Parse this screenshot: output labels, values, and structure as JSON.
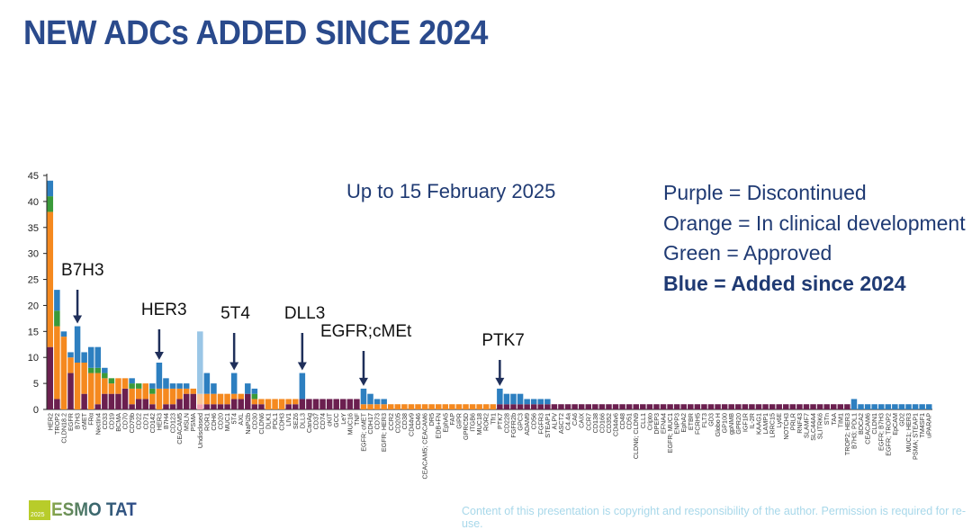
{
  "title": "NEW ADCs ADDED SINCE 2024",
  "subtitle": "Up to 15 February 2025",
  "legend": [
    {
      "label": "Purple = Discontinued",
      "bold": false
    },
    {
      "label": "Orange = In clinical development",
      "bold": false
    },
    {
      "label": "Green = Approved",
      "bold": false
    },
    {
      "label": "Blue = Added since 2024",
      "bold": true
    }
  ],
  "footer": {
    "logo_year": "2025",
    "logo_text": "ESMO TAT",
    "copyright": "Content of this presentation is copyright and responsibility of the author. Permission is required for re-use."
  },
  "chart_data": {
    "type": "bar",
    "stacked": true,
    "title": "NEW ADCs ADDED SINCE 2024",
    "xlabel": "",
    "ylabel": "",
    "ylim": [
      0,
      45
    ],
    "yticks": [
      0,
      5,
      10,
      15,
      20,
      25,
      30,
      35,
      40,
      45
    ],
    "grid": false,
    "legend_position": "top-right",
    "colors": {
      "Discontinued": "#6b1f4f",
      "In clinical development": "#f5891f",
      "Approved": "#3a9a3a",
      "Added since 2024": "#2d7fc0",
      "undisclosed_discontinued": "#f2a0b0",
      "undisclosed_clinical": "#f8c79a",
      "undisclosed_added": "#9ac6e6"
    },
    "categories": [
      "HER2",
      "TROP2",
      "CLDN18.2",
      "EGFR",
      "B7H3",
      "cMET",
      "FRα",
      "Nectin4",
      "CD33",
      "CD19",
      "BCMA",
      "CD70",
      "CD79b",
      "CD22",
      "CD71",
      "CD142",
      "HER3",
      "B7H4",
      "CD123",
      "CEACAM5",
      "MSLN",
      "PSMA",
      "Undisclosed",
      "ROR1",
      "CDH6",
      "CD20",
      "MUC1",
      "5T4",
      "AXL",
      "NaPi2b",
      "CD30",
      "CLDN6",
      "DLK1",
      "PDL1",
      "CDH3",
      "LIV1",
      "SEZ6",
      "DLL3",
      "CanAg",
      "CD37",
      "CD74",
      "cKIT",
      "GCC",
      "LeY",
      "MUC16",
      "TNF",
      "EGFR; cMET",
      "CDH17",
      "CD73",
      "EGFR; HER3",
      "CCR2",
      "CD205",
      "CD38",
      "CD44v9",
      "CD46",
      "CEACAM5; CEACAM6",
      "DR5",
      "EDB+FN",
      "EphA5",
      "FAP",
      "GIPR",
      "GPRC5D",
      "ITGB6",
      "MUC18",
      "ROR2",
      "Tfr1",
      "PTK7",
      "CD228",
      "FGFR2b",
      "GPC3",
      "ADAM9",
      "CD56",
      "FGFR3",
      "STEAP1",
      "ALPV",
      "ASCT2",
      "C4.4a",
      "CA6",
      "CAIX",
      "CCR7",
      "CD138",
      "CD166",
      "CD352",
      "CD44v6",
      "CD48",
      "CD51",
      "CLDN6; CLDN9",
      "CLL1",
      "Cripto",
      "DPEP3",
      "EFNA4",
      "EGFR; MUC1",
      "ENPP3",
      "EphA2",
      "ETBR",
      "FCRH5",
      "FLT3",
      "GD3",
      "Globo H",
      "GP100",
      "gpNMB",
      "GPR20",
      "IGF1R",
      "IL-2R",
      "KAAG1",
      "LAMP1",
      "LRRC15",
      "Ly6E",
      "NOTCH3",
      "PRLR",
      "RNF43",
      "SLAMF7",
      "SLC44A4",
      "SLITRK6",
      "STn",
      "TAA",
      "TIM1",
      "TROP2; HER3",
      "B7H3; PDL1",
      "BDCA2",
      "CEACAM6",
      "CLDN1",
      "EGFR; B7H3",
      "EGFR; TROP2",
      "EpCAM",
      "GD2",
      "MUC1; HER3",
      "PSMA; STEAP1",
      "TM4SF1",
      "uPARAP"
    ],
    "series": [
      {
        "name": "Discontinued",
        "values": [
          12,
          2,
          0,
          7,
          0,
          3,
          0,
          1,
          3,
          3,
          3,
          4,
          1,
          2,
          2,
          1,
          0,
          1,
          1,
          2,
          3,
          3,
          1,
          1,
          1,
          1,
          1,
          2,
          2,
          3,
          1,
          1,
          0,
          0,
          0,
          1,
          1,
          2,
          2,
          2,
          2,
          2,
          2,
          2,
          2,
          2,
          0,
          0,
          0,
          0,
          0,
          0,
          0,
          0,
          0,
          0,
          0,
          0,
          0,
          0,
          0,
          0,
          0,
          0,
          0,
          0,
          1,
          1,
          1,
          1,
          1,
          1,
          1,
          1,
          1,
          1,
          1,
          1,
          1,
          1,
          1,
          1,
          1,
          1,
          1,
          1,
          1,
          1,
          1,
          1,
          1,
          1,
          1,
          1,
          1,
          1,
          1,
          1,
          1,
          1,
          1,
          1,
          1,
          1,
          1,
          1,
          1,
          1,
          1,
          1,
          1,
          1,
          1,
          1,
          1,
          1,
          1,
          1,
          0,
          0,
          0,
          0,
          0,
          0,
          0,
          0,
          0,
          0,
          0,
          0,
          0
        ]
      },
      {
        "name": "In clinical development",
        "values": [
          26,
          14,
          14,
          3,
          9,
          6,
          7,
          6,
          3,
          2,
          3,
          2,
          3,
          2,
          3,
          2,
          4,
          3,
          3,
          2,
          1,
          1,
          2,
          2,
          2,
          2,
          2,
          1,
          1,
          0,
          1,
          1,
          2,
          2,
          2,
          1,
          1,
          0,
          0,
          0,
          0,
          0,
          0,
          0,
          0,
          0,
          1,
          1,
          1,
          1,
          1,
          1,
          1,
          1,
          1,
          1,
          1,
          1,
          1,
          1,
          1,
          1,
          1,
          1,
          1,
          1,
          0,
          0,
          0,
          0,
          0,
          0,
          0,
          0,
          0,
          0,
          0,
          0,
          0,
          0,
          0,
          0,
          0,
          0,
          0,
          0,
          0,
          0,
          0,
          0,
          0,
          0,
          0,
          0,
          0,
          0,
          0,
          0,
          0,
          0,
          0,
          0,
          0,
          0,
          0,
          0,
          0,
          0,
          0,
          0,
          0,
          0,
          0,
          0,
          0,
          0,
          0,
          0,
          0,
          0,
          0,
          0,
          0,
          0,
          0,
          0,
          0,
          0,
          0,
          0,
          0
        ]
      },
      {
        "name": "Approved",
        "values": [
          3,
          3,
          0,
          0,
          0,
          0,
          1,
          1,
          1,
          1,
          0,
          0,
          1,
          1,
          0,
          1,
          0,
          0,
          0,
          0,
          0,
          0,
          0,
          0,
          0,
          0,
          0,
          0,
          0,
          0,
          1,
          0,
          0,
          0,
          0,
          0,
          0,
          0,
          0,
          0,
          0,
          0,
          0,
          0,
          0,
          0,
          0,
          0,
          0,
          0,
          0,
          0,
          0,
          0,
          0,
          0,
          0,
          0,
          0,
          0,
          0,
          0,
          0,
          0,
          0,
          0,
          0,
          0,
          0,
          0,
          0,
          0,
          0,
          0,
          0,
          0,
          0,
          0,
          0,
          0,
          0,
          0,
          0,
          0,
          0,
          0,
          0,
          0,
          0,
          0,
          0,
          0,
          0,
          0,
          0,
          0,
          0,
          0,
          0,
          0,
          0,
          0,
          0,
          0,
          0,
          0,
          0,
          0,
          0,
          0,
          0,
          0,
          0,
          0,
          0,
          0,
          0,
          0,
          0,
          0,
          0,
          0,
          0,
          0,
          0,
          0,
          0,
          0,
          0,
          0,
          0
        ]
      },
      {
        "name": "Added since 2024",
        "values": [
          3,
          4,
          1,
          1,
          7,
          2,
          4,
          4,
          1,
          0,
          0,
          0,
          1,
          0,
          0,
          1,
          5,
          2,
          1,
          1,
          1,
          0,
          12,
          4,
          2,
          0,
          0,
          4,
          0,
          2,
          1,
          0,
          0,
          0,
          0,
          0,
          0,
          5,
          0,
          0,
          0,
          0,
          0,
          0,
          0,
          0,
          3,
          2,
          1,
          1,
          0,
          0,
          0,
          0,
          0,
          0,
          0,
          0,
          0,
          0,
          0,
          0,
          0,
          0,
          0,
          0,
          3,
          2,
          2,
          2,
          1,
          1,
          1,
          1,
          0,
          0,
          0,
          0,
          0,
          0,
          0,
          0,
          0,
          0,
          0,
          0,
          0,
          0,
          0,
          0,
          0,
          0,
          0,
          0,
          0,
          0,
          0,
          0,
          0,
          0,
          0,
          0,
          0,
          0,
          0,
          0,
          0,
          0,
          0,
          0,
          0,
          0,
          0,
          0,
          0,
          0,
          0,
          0,
          2,
          1,
          1,
          1,
          1,
          1,
          1,
          1,
          1,
          1,
          1,
          1,
          1
        ]
      }
    ],
    "undisclosed_index": 22,
    "annotations": [
      {
        "label": "B7H3",
        "category": "B7H3"
      },
      {
        "label": "HER3",
        "category": "HER3"
      },
      {
        "label": "5T4",
        "category": "5T4"
      },
      {
        "label": "DLL3",
        "category": "DLL3"
      },
      {
        "label": "EGFR;cMEt",
        "category": "EGFR; cMET"
      },
      {
        "label": "PTK7",
        "category": "PTK7"
      }
    ]
  }
}
